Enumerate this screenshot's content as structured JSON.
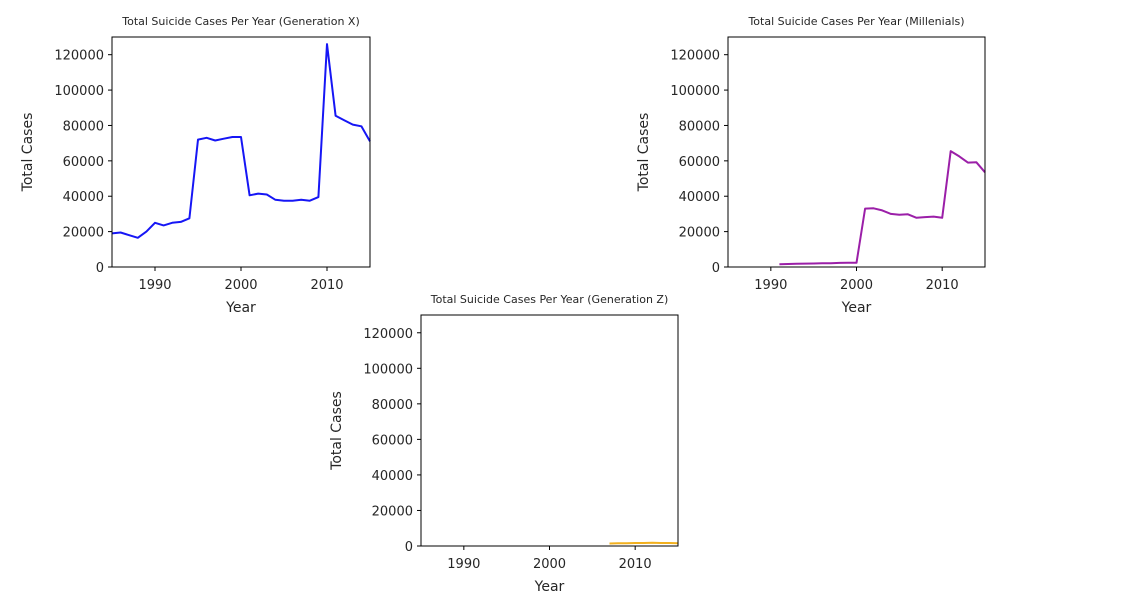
{
  "chart_data": [
    {
      "type": "line",
      "title": "Total Suicide Cases Per Year (Generation X)",
      "xlabel": "Year",
      "ylabel": "Total Cases",
      "xlim": [
        1985,
        2015
      ],
      "ylim": [
        0,
        130000
      ],
      "xticks": [
        "1990",
        "2000",
        "2010"
      ],
      "yticks": [
        "0",
        "20000",
        "40000",
        "60000",
        "80000",
        "100000",
        "120000"
      ],
      "grid": false,
      "color": "#1616f5",
      "series": [
        {
          "x": [
            1985,
            1986,
            1987,
            1988,
            1989,
            1990,
            1991,
            1992,
            1993,
            1994,
            1995,
            1996,
            1997,
            1998,
            1999,
            2000,
            2001,
            2002,
            2003,
            2004,
            2005,
            2006,
            2007,
            2008,
            2009,
            2010,
            2011,
            2012,
            2013,
            2014,
            2015
          ],
          "values": [
            19000,
            19500,
            18000,
            16500,
            20000,
            25000,
            23500,
            25000,
            25500,
            27500,
            72000,
            73000,
            71500,
            72500,
            73500,
            73500,
            40500,
            41500,
            41000,
            38000,
            37500,
            37500,
            38000,
            37500,
            39500,
            126000,
            85500,
            83000,
            80500,
            79500,
            71000
          ]
        }
      ]
    },
    {
      "type": "line",
      "title": "Total Suicide Cases Per Year (Millenials)",
      "xlabel": "Year",
      "ylabel": "Total Cases",
      "xlim": [
        1985,
        2015
      ],
      "ylim": [
        0,
        130000
      ],
      "xticks": [
        "1990",
        "2000",
        "2010"
      ],
      "yticks": [
        "0",
        "20000",
        "40000",
        "60000",
        "80000",
        "100000",
        "120000"
      ],
      "grid": false,
      "color": "#9b1fa8",
      "series": [
        {
          "x": [
            1991,
            1992,
            1993,
            1994,
            1995,
            1996,
            1997,
            1998,
            1999,
            2000,
            2001,
            2002,
            2003,
            2004,
            2005,
            2006,
            2007,
            2008,
            2009,
            2010,
            2011,
            2012,
            2013,
            2014,
            2015
          ],
          "values": [
            1500,
            1700,
            1800,
            1900,
            2000,
            2100,
            2100,
            2300,
            2400,
            2400,
            33000,
            33200,
            32000,
            30000,
            29500,
            29800,
            27800,
            28200,
            28500,
            27800,
            65500,
            62500,
            59000,
            59200,
            53500
          ]
        }
      ]
    },
    {
      "type": "line",
      "title": "Total Suicide Cases Per Year (Generation Z)",
      "xlabel": "Year",
      "ylabel": "Total Cases",
      "xlim": [
        1985,
        2015
      ],
      "ylim": [
        0,
        130000
      ],
      "xticks": [
        "1990",
        "2000",
        "2010"
      ],
      "yticks": [
        "0",
        "20000",
        "40000",
        "60000",
        "80000",
        "100000",
        "120000"
      ],
      "grid": false,
      "color": "#f2b01e",
      "series": [
        {
          "x": [
            2007,
            2008,
            2009,
            2010,
            2011,
            2012,
            2013,
            2014,
            2015
          ],
          "values": [
            1400,
            1500,
            1600,
            1700,
            1700,
            1800,
            1700,
            1700,
            1600
          ]
        }
      ]
    }
  ]
}
